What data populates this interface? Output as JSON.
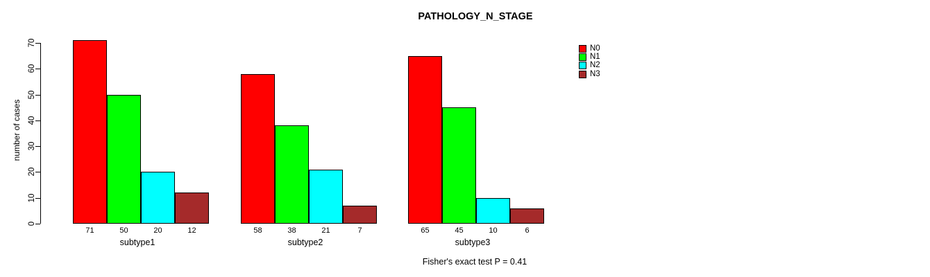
{
  "chart_data": {
    "type": "bar",
    "title": "PATHOLOGY_N_STAGE",
    "ylabel": "number of cases",
    "xlabel": "",
    "footnote": "Fisher's exact test P = 0.41",
    "categories": [
      "subtype1",
      "subtype2",
      "subtype3"
    ],
    "series": [
      {
        "name": "N0",
        "color": "#ff0000",
        "values": [
          71,
          58,
          65
        ]
      },
      {
        "name": "N1",
        "color": "#00ff00",
        "values": [
          50,
          38,
          45
        ]
      },
      {
        "name": "N2",
        "color": "#00ffff",
        "values": [
          20,
          21,
          10
        ]
      },
      {
        "name": "N3",
        "color": "#a52a2a",
        "values": [
          12,
          7,
          6
        ]
      }
    ],
    "bar_value_labels": {
      "subtype1": [
        71,
        50,
        20,
        12
      ],
      "subtype2": [
        58,
        38,
        21,
        7
      ],
      "subtype3": [
        65,
        45,
        10,
        6
      ]
    },
    "ylim": [
      0,
      70
    ],
    "yticks": [
      0,
      10,
      20,
      30,
      40,
      50,
      60,
      70
    ],
    "grid": false,
    "legend_position": "top-right",
    "legend_entries": [
      "N0",
      "N1",
      "N2",
      "N3"
    ]
  }
}
